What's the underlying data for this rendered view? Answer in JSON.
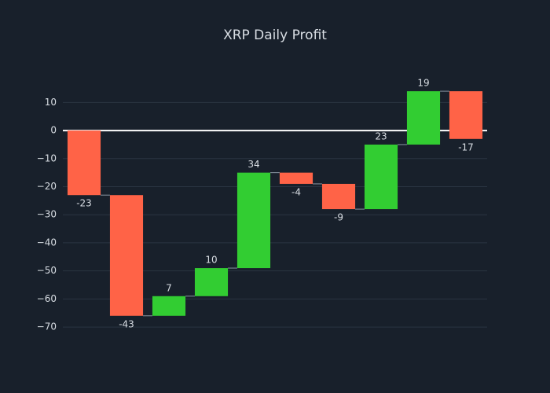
{
  "chart_data": {
    "type": "waterfall",
    "title": "XRP Daily Profit",
    "values": [
      -23,
      -43,
      7,
      10,
      34,
      -4,
      -9,
      23,
      19,
      -17
    ],
    "increasing_color": "#32cd32",
    "decreasing_color": "#ff6347",
    "ylim": [
      -71.1,
      18.5
    ],
    "yticks": [
      10,
      0,
      {
        "value": -10,
        "label": "−10"
      },
      {
        "value": -20,
        "label": "−20"
      },
      {
        "value": -30,
        "label": "−30"
      },
      {
        "value": -40,
        "label": "−40"
      },
      {
        "value": -50,
        "label": "−50"
      },
      {
        "value": -60,
        "label": "−60"
      },
      {
        "value": -70,
        "label": "−70"
      }
    ],
    "grid": true
  }
}
